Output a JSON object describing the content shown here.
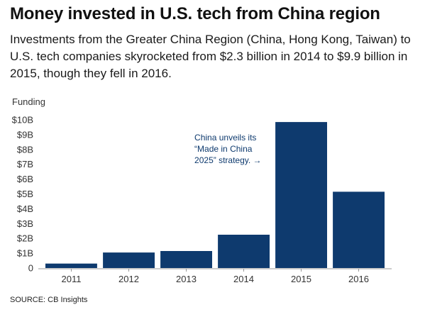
{
  "title": "Money invested in U.S. tech from China region",
  "subtitle": "Investments from the Greater China Region (China, Hong Kong, Taiwan) to U.S. tech companies skyrocketed from $2.3 billion in 2014 to $9.9 billion in 2015, though they fell in 2016.",
  "source": "SOURCE: CB Insights",
  "colors": {
    "bar": "#0e3a6e",
    "annotation": "#0e3a6e",
    "axis": "#999999",
    "tick_text": "#333333"
  },
  "chart_data": {
    "type": "bar",
    "ylabel": "Funding",
    "categories": [
      "2011",
      "2012",
      "2013",
      "2014",
      "2015",
      "2016"
    ],
    "values": [
      0.3,
      1.05,
      1.15,
      2.25,
      9.85,
      5.15
    ],
    "ylim": [
      0,
      10
    ],
    "yticks": [
      0,
      1,
      2,
      3,
      4,
      5,
      6,
      7,
      8,
      9,
      10
    ],
    "ytick_labels": [
      "0",
      "$1B",
      "$2B",
      "$3B",
      "$4B",
      "$5B",
      "$6B",
      "$7B",
      "$8B",
      "$9B",
      "$10B"
    ],
    "grid": false,
    "annotation": {
      "lines": [
        "China unveils its",
        "“Made in China",
        "2025” strategy. →"
      ],
      "category": "2015"
    }
  }
}
